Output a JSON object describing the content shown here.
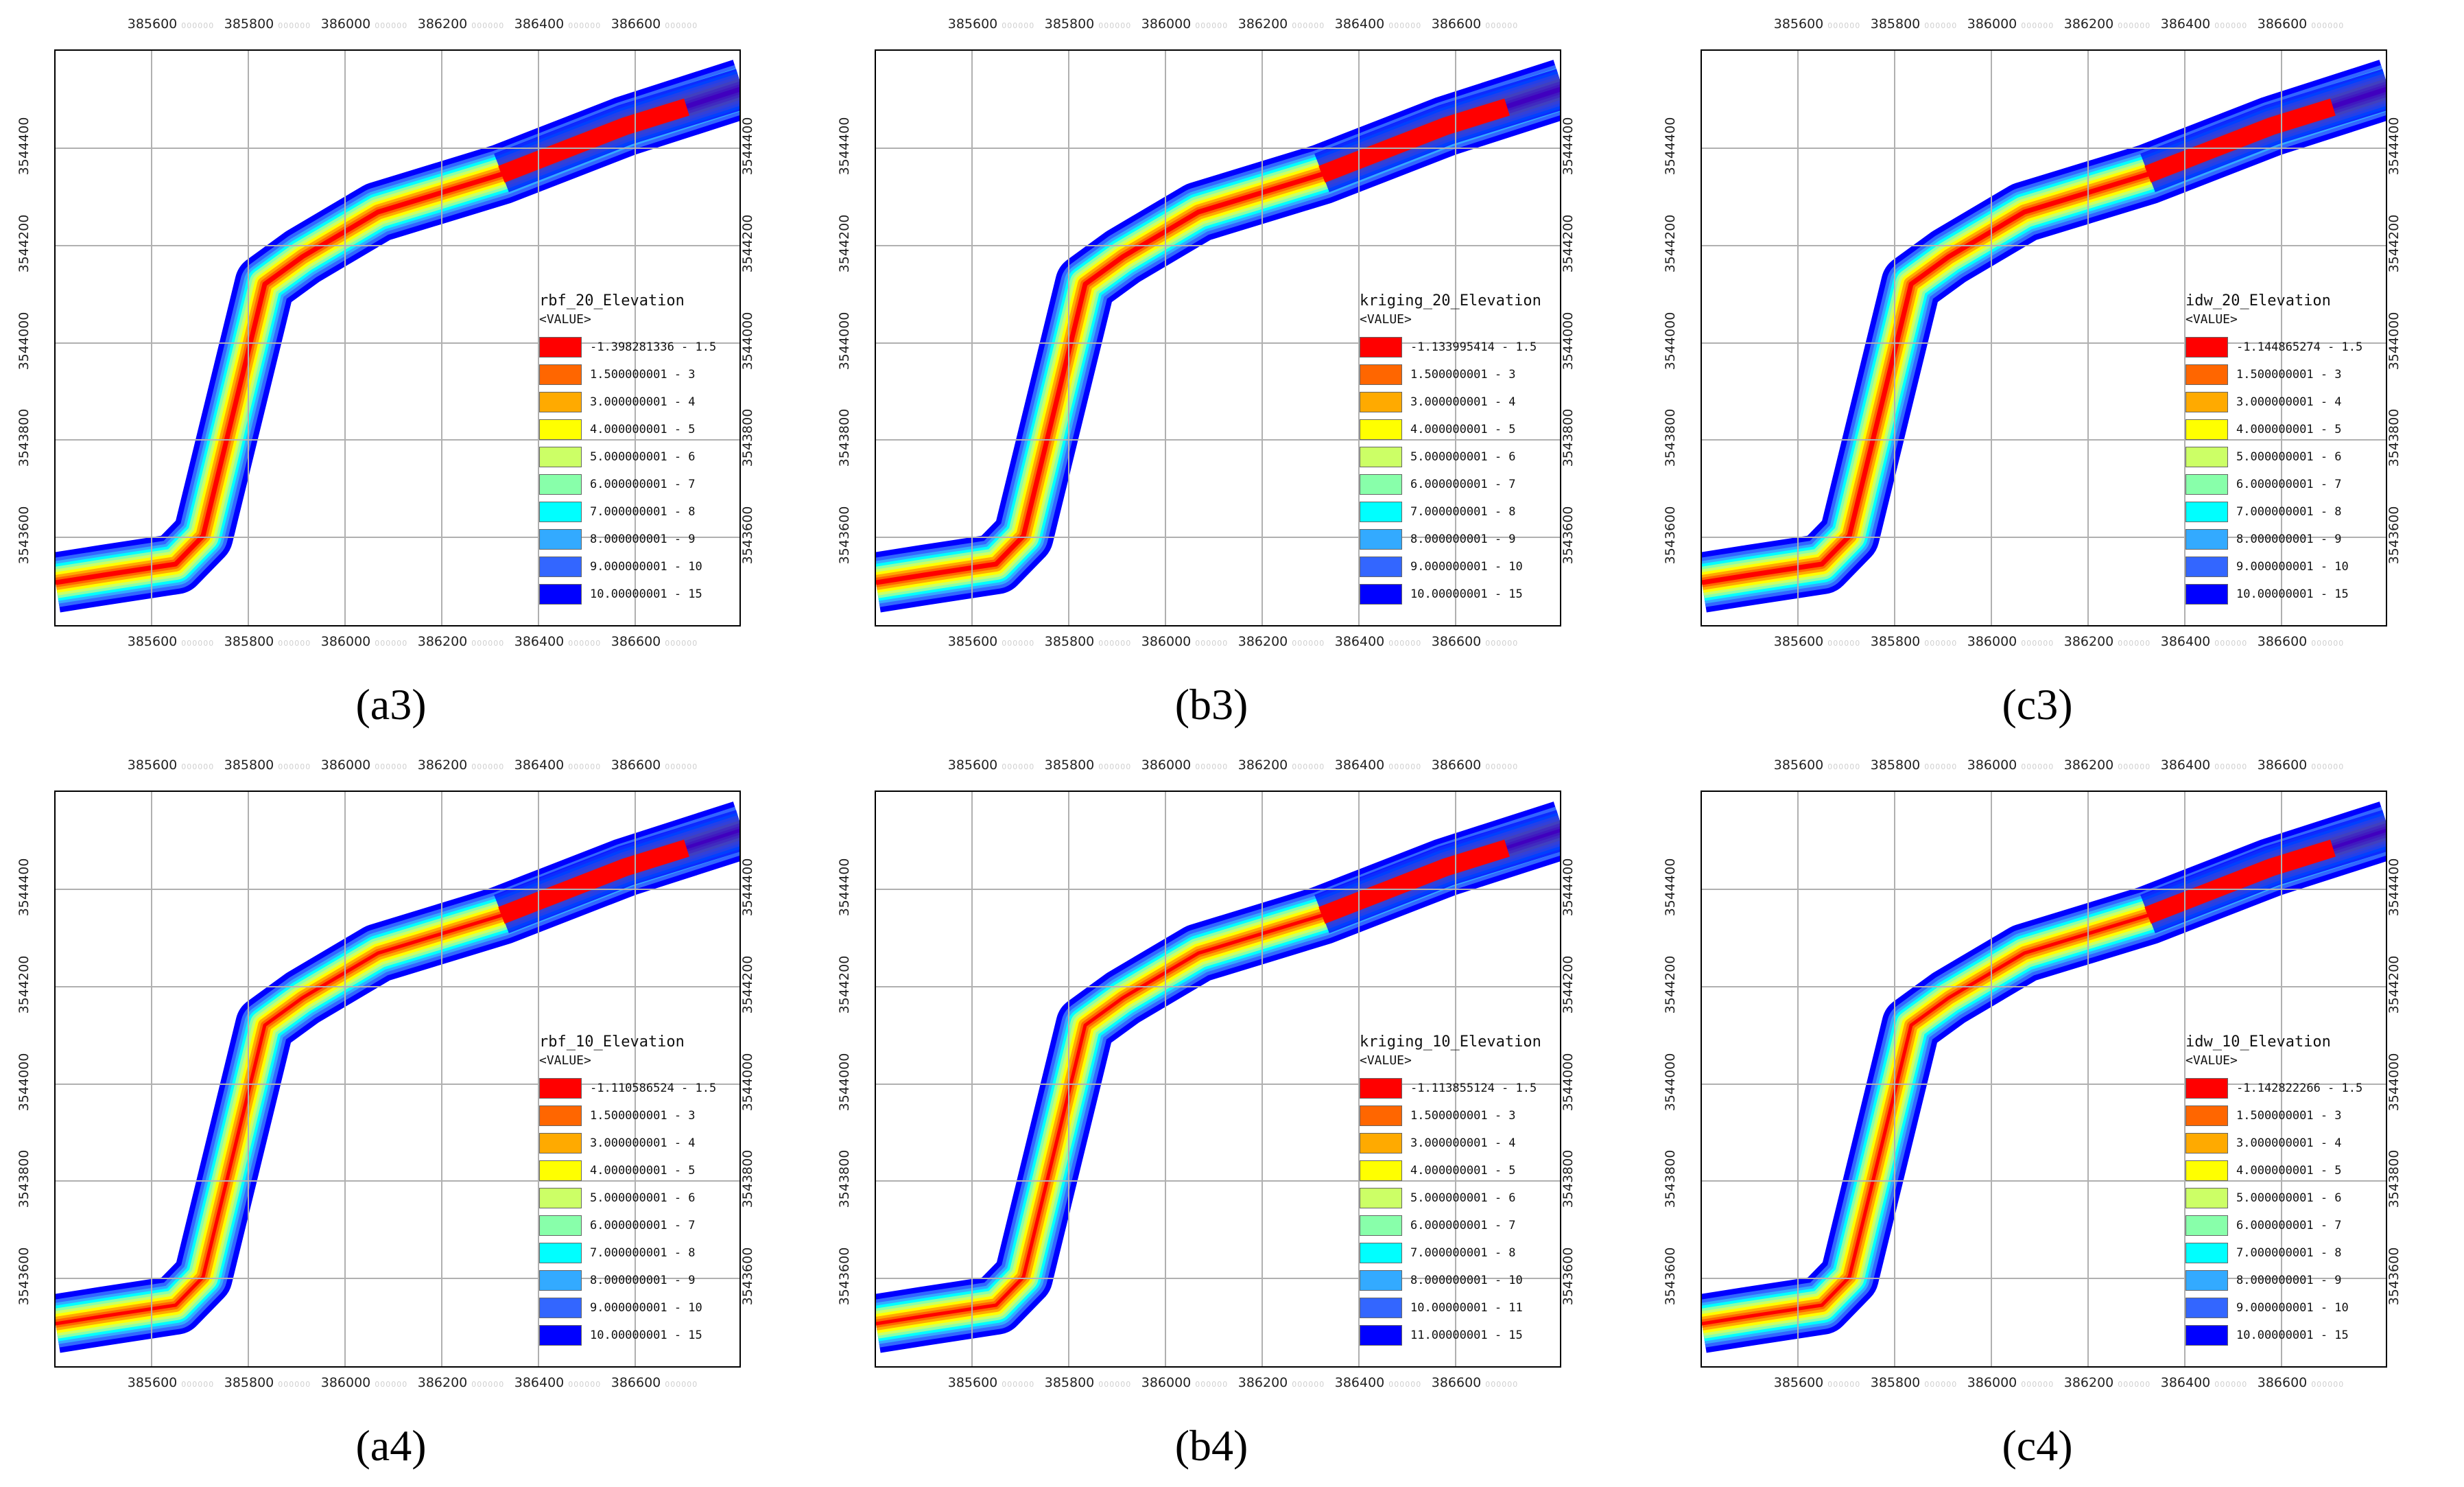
{
  "x_ticks": [
    "385600",
    "385800",
    "386000",
    "386200",
    "386400",
    "386600"
  ],
  "y_ticks": [
    "3543600",
    "3543800",
    "3544000",
    "3544200",
    "3544400"
  ],
  "tick_ghost": "000000",
  "panels": [
    {
      "id": "a3",
      "caption": "(a3)",
      "legend_title": "rbf_20_Elevation",
      "legend_sub": "<VALUE>",
      "ranges": [
        "-1.398281336 - 1.5",
        "1.500000001 - 3",
        "3.000000001 - 4",
        "4.000000001 - 5",
        "5.000000001 - 6",
        "6.000000001 - 7",
        "7.000000001 - 8",
        "8.000000001 - 9",
        "9.000000001 - 10",
        "10.00000001 - 15"
      ]
    },
    {
      "id": "b3",
      "caption": "(b3)",
      "legend_title": "kriging_20_Elevation",
      "legend_sub": "<VALUE>",
      "ranges": [
        "-1.133995414 - 1.5",
        "1.500000001 - 3",
        "3.000000001 - 4",
        "4.000000001 - 5",
        "5.000000001 - 6",
        "6.000000001 - 7",
        "7.000000001 - 8",
        "8.000000001 - 9",
        "9.000000001 - 10",
        "10.00000001 - 15"
      ]
    },
    {
      "id": "c3",
      "caption": "(c3)",
      "legend_title": "idw_20_Elevation",
      "legend_sub": "<VALUE>",
      "ranges": [
        "-1.144865274 - 1.5",
        "1.500000001 - 3",
        "3.000000001 - 4",
        "4.000000001 - 5",
        "5.000000001 - 6",
        "6.000000001 - 7",
        "7.000000001 - 8",
        "8.000000001 - 9",
        "9.000000001 - 10",
        "10.00000001 - 15"
      ]
    },
    {
      "id": "a4",
      "caption": "(a4)",
      "legend_title": "rbf_10_Elevation",
      "legend_sub": "<VALUE>",
      "ranges": [
        "-1.110586524 - 1.5",
        "1.500000001 - 3",
        "3.000000001 - 4",
        "4.000000001 - 5",
        "5.000000001 - 6",
        "6.000000001 - 7",
        "7.000000001 - 8",
        "8.000000001 - 9",
        "9.000000001 - 10",
        "10.00000001 - 15"
      ]
    },
    {
      "id": "b4",
      "caption": "(b4)",
      "legend_title": "kriging_10_Elevation",
      "legend_sub": "<VALUE>",
      "ranges": [
        "-1.113855124 - 1.5",
        "1.500000001 - 3",
        "3.000000001 - 4",
        "4.000000001 - 5",
        "5.000000001 - 6",
        "6.000000001 - 7",
        "7.000000001 - 8",
        "8.000000001 - 10",
        "10.00000001 - 11",
        "11.00000001 - 15"
      ]
    },
    {
      "id": "c4",
      "caption": "(c4)",
      "legend_title": "idw_10_Elevation",
      "legend_sub": "<VALUE>",
      "ranges": [
        "-1.142822266 - 1.5",
        "1.500000001 - 3",
        "3.000000001 - 4",
        "4.000000001 - 5",
        "5.000000001 - 6",
        "6.000000001 - 7",
        "7.000000001 - 8",
        "8.000000001 - 9",
        "9.000000001 - 10",
        "10.00000001 - 15"
      ]
    }
  ],
  "colors": [
    "#ff0000",
    "#ff6600",
    "#ffaa00",
    "#ffff00",
    "#ccff66",
    "#88ffaa",
    "#00ffff",
    "#33aaff",
    "#3366ff",
    "#0000ff"
  ]
}
